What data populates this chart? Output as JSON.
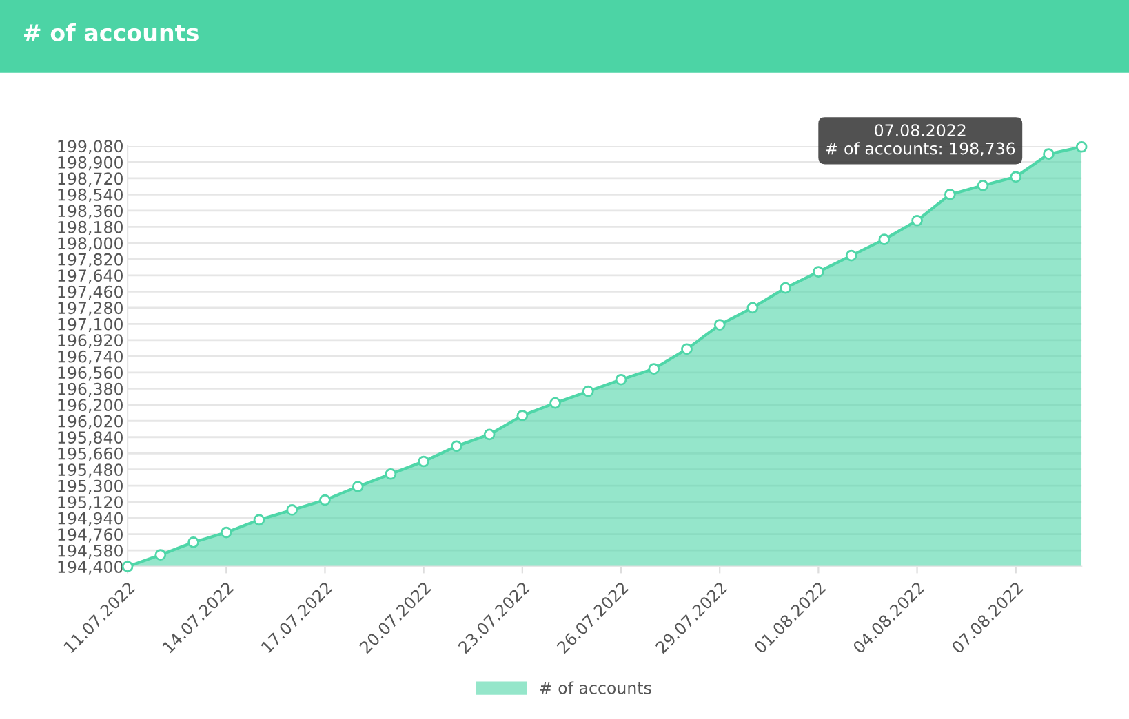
{
  "chart_data": {
    "type": "area",
    "title": "# of accounts",
    "x": [
      "2022-07-11",
      "2022-07-12",
      "2022-07-13",
      "2022-07-14",
      "2022-07-15",
      "2022-07-16",
      "2022-07-17",
      "2022-07-18",
      "2022-07-19",
      "2022-07-20",
      "2022-07-21",
      "2022-07-22",
      "2022-07-23",
      "2022-07-24",
      "2022-07-25",
      "2022-07-26",
      "2022-07-27",
      "2022-07-28",
      "2022-07-29",
      "2022-07-30",
      "2022-07-31",
      "2022-08-01",
      "2022-08-02",
      "2022-08-03",
      "2022-08-04",
      "2022-08-05",
      "2022-08-06",
      "2022-08-07",
      "2022-08-08",
      "2022-08-09"
    ],
    "series": [
      {
        "name": "# of accounts",
        "color": "#4fd6a8",
        "values": [
          194400,
          194530,
          194670,
          194780,
          194920,
          195030,
          195140,
          195290,
          195430,
          195570,
          195740,
          195870,
          196080,
          196220,
          196350,
          196480,
          196600,
          196820,
          197090,
          197280,
          197500,
          197680,
          197860,
          198040,
          198250,
          198540,
          198640,
          198736,
          198990,
          199070
        ]
      }
    ],
    "xlim": [
      "2022-07-11",
      "2022-08-09"
    ],
    "xticks": [
      {
        "value": "2022-07-11",
        "label": "11.07.2022"
      },
      {
        "value": "2022-07-14",
        "label": "14.07.2022"
      },
      {
        "value": "2022-07-17",
        "label": "17.07.2022"
      },
      {
        "value": "2022-07-20",
        "label": "20.07.2022"
      },
      {
        "value": "2022-07-23",
        "label": "23.07.2022"
      },
      {
        "value": "2022-07-26",
        "label": "26.07.2022"
      },
      {
        "value": "2022-07-29",
        "label": "29.07.2022"
      },
      {
        "value": "2022-08-01",
        "label": "01.08.2022"
      },
      {
        "value": "2022-08-04",
        "label": "04.08.2022"
      },
      {
        "value": "2022-08-07",
        "label": "07.08.2022"
      }
    ],
    "ylim": [
      194400,
      199080
    ],
    "yticks": [
      {
        "value": 194400,
        "label": "194,400"
      },
      {
        "value": 194580,
        "label": "194,580"
      },
      {
        "value": 194760,
        "label": "194,760"
      },
      {
        "value": 194940,
        "label": "194,940"
      },
      {
        "value": 195120,
        "label": "195,120"
      },
      {
        "value": 195300,
        "label": "195,300"
      },
      {
        "value": 195480,
        "label": "195,480"
      },
      {
        "value": 195660,
        "label": "195,660"
      },
      {
        "value": 195840,
        "label": "195,840"
      },
      {
        "value": 196020,
        "label": "196,020"
      },
      {
        "value": 196200,
        "label": "196,200"
      },
      {
        "value": 196380,
        "label": "196,380"
      },
      {
        "value": 196560,
        "label": "196,560"
      },
      {
        "value": 196740,
        "label": "196,740"
      },
      {
        "value": 196920,
        "label": "196,920"
      },
      {
        "value": 197100,
        "label": "197,100"
      },
      {
        "value": 197280,
        "label": "197,280"
      },
      {
        "value": 197460,
        "label": "197,460"
      },
      {
        "value": 197640,
        "label": "197,640"
      },
      {
        "value": 197820,
        "label": "197,820"
      },
      {
        "value": 198000,
        "label": "198,000"
      },
      {
        "value": 198180,
        "label": "198,180"
      },
      {
        "value": 198360,
        "label": "198,360"
      },
      {
        "value": 198540,
        "label": "198,540"
      },
      {
        "value": 198720,
        "label": "198,720"
      },
      {
        "value": 198900,
        "label": "198,900"
      },
      {
        "value": 199080,
        "label": "199,080"
      }
    ],
    "annotations": [
      {
        "text": "07.08.2022\n# of accounts: 198,736",
        "x": "2022-08-07",
        "y": 198736
      }
    ],
    "grid": "y",
    "legend": "bottom",
    "marker": "circle",
    "line_style": "solid"
  }
}
